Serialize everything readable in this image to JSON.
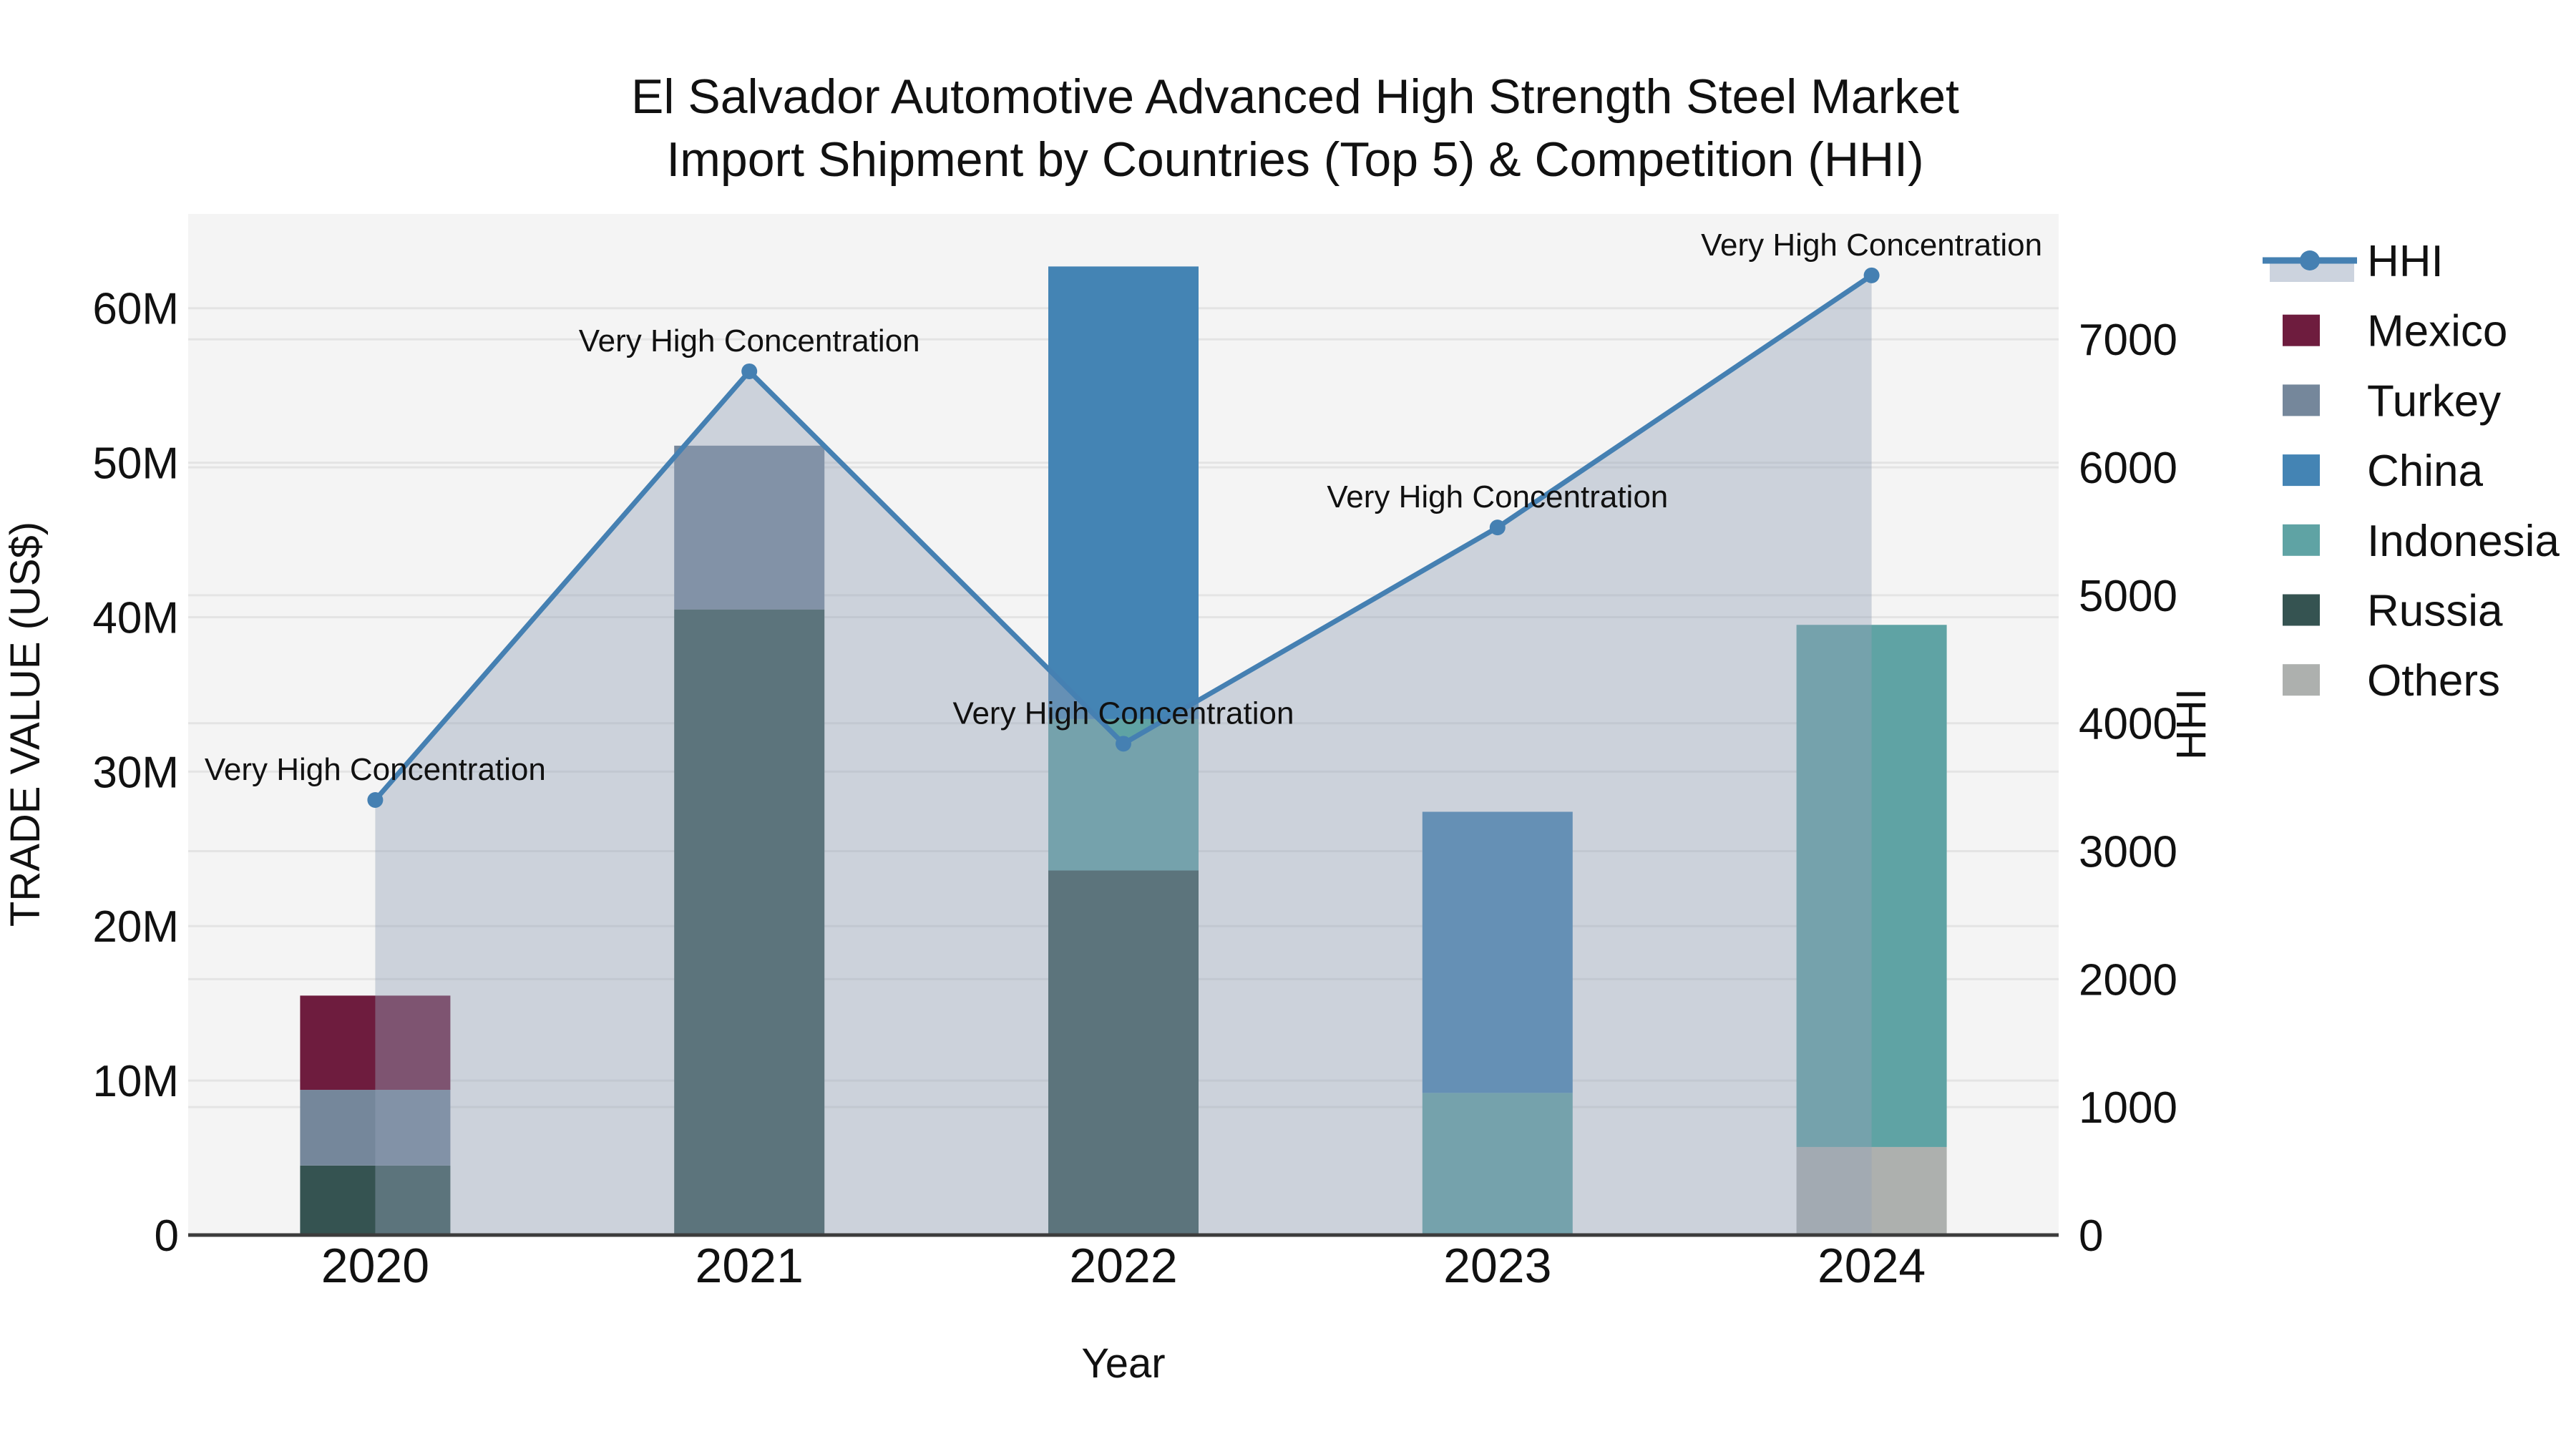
{
  "title": {
    "line1": "El Salvador Automotive Advanced High Strength Steel Market",
    "line2": "Import Shipment by Countries (Top 5) & Competition (HHI)"
  },
  "axis_titles": {
    "left": "TRADE VALUE (US$)",
    "right": "HHI",
    "x": "Year"
  },
  "colors": {
    "background": "#ffffff",
    "plot_background": "#f4f4f4",
    "gridline": "#e4e4e4",
    "axis_line": "#3c3c3c",
    "hhi_line": "#4580b2",
    "hhi_area_fill": "rgba(148,162,184,0.42)",
    "legend_band": "#ccd3de",
    "annotation_text": "#111111"
  },
  "legend": {
    "items": [
      {
        "label": "HHI",
        "type": "line",
        "color": "#4580b2"
      },
      {
        "label": "Mexico",
        "type": "swatch",
        "color": "#6e1c3e"
      },
      {
        "label": "Turkey",
        "type": "swatch",
        "color": "#75879b"
      },
      {
        "label": "China",
        "type": "swatch",
        "color": "#4484b4"
      },
      {
        "label": "Indonesia",
        "type": "swatch",
        "color": "#5fa3a4"
      },
      {
        "label": "Russia",
        "type": "swatch",
        "color": "#355351"
      },
      {
        "label": "Others",
        "type": "swatch",
        "color": "#adb0ae"
      }
    ]
  },
  "chart_data": {
    "type": "bar+line",
    "title": "El Salvador Automotive Advanced High Strength Steel Market Import Shipment by Countries (Top 5) & Competition (HHI)",
    "categories": [
      "2020",
      "2021",
      "2022",
      "2023",
      "2024"
    ],
    "bar_unit": "million US$ (trade value)",
    "series": [
      {
        "name": "Mexico",
        "color": "#6e1c3e",
        "values_musd": [
          6.1,
          0,
          0,
          0,
          0
        ]
      },
      {
        "name": "Turkey",
        "color": "#75879b",
        "values_musd": [
          4.9,
          10.6,
          0,
          0,
          0
        ]
      },
      {
        "name": "China",
        "color": "#4484b4",
        "values_musd": [
          0,
          0,
          29.3,
          18.2,
          0
        ]
      },
      {
        "name": "Indonesia",
        "color": "#5fa3a4",
        "values_musd": [
          0,
          0,
          9.8,
          9.2,
          33.8
        ]
      },
      {
        "name": "Russia",
        "color": "#355351",
        "values_musd": [
          4.5,
          40.5,
          23.6,
          0,
          0
        ]
      },
      {
        "name": "Others",
        "color": "#adb0ae",
        "values_musd": [
          0,
          0,
          0,
          0,
          5.7
        ]
      }
    ],
    "stack_order": [
      "Russia",
      "Others",
      "Turkey",
      "Indonesia",
      "Mexico",
      "China"
    ],
    "stack_totals_musd": [
      15.5,
      51.1,
      62.7,
      27.4,
      39.5
    ],
    "hhi": {
      "name": "HHI",
      "values": [
        3400,
        6750,
        3840,
        5530,
        7500
      ],
      "line_color": "#4580b2",
      "marker": "circle",
      "area_fill": "rgba(148,162,184,0.42)"
    },
    "annotations": [
      {
        "year": "2020",
        "text": "Very High Concentration"
      },
      {
        "year": "2021",
        "text": "Very High Concentration"
      },
      {
        "year": "2022",
        "text": "Very High Concentration"
      },
      {
        "year": "2023",
        "text": "Very High Concentration"
      },
      {
        "year": "2024",
        "text": "Very High Concentration"
      }
    ],
    "xlabel": "Year",
    "ylabel_left": "TRADE VALUE (US$)",
    "ylabel_right": "HHI",
    "yticks_left_labels": [
      "0",
      "10M",
      "20M",
      "30M",
      "40M",
      "50M",
      "60M"
    ],
    "yticks_left_m": [
      0,
      10,
      20,
      30,
      40,
      50,
      60
    ],
    "yticks_right": [
      0,
      1000,
      2000,
      3000,
      4000,
      5000,
      6000,
      7000
    ],
    "ylim_left_musd": [
      0,
      66.1
    ],
    "ylim_right": [
      0,
      7980
    ],
    "grid": true,
    "legend_position": "right"
  }
}
